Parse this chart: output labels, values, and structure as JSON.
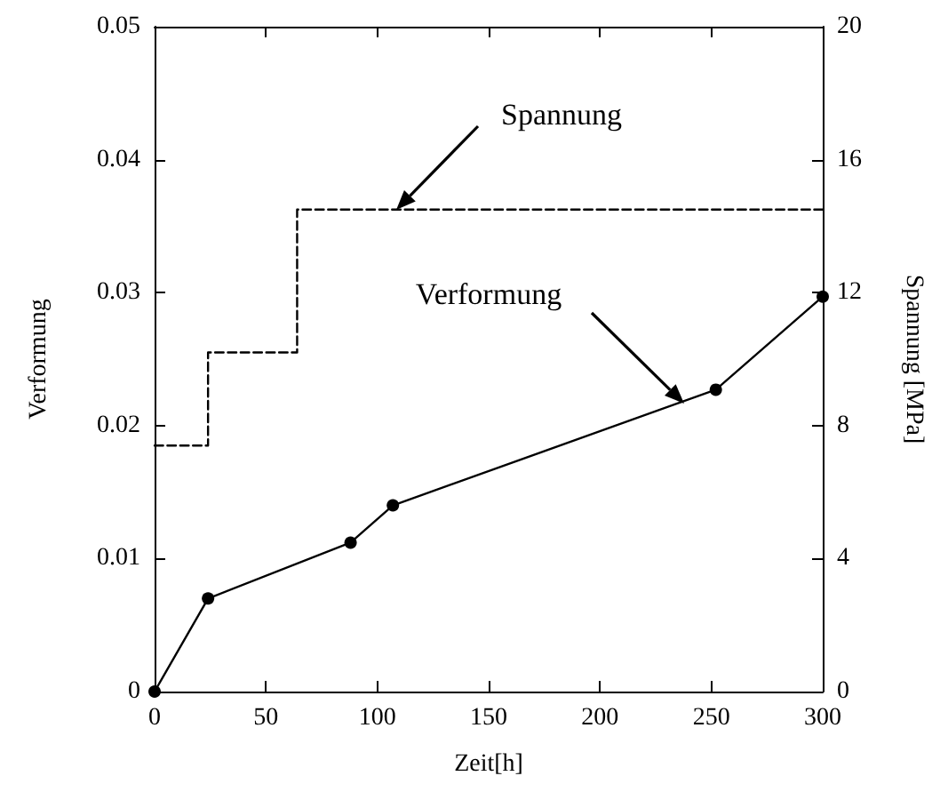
{
  "chart_data": {
    "type": "line",
    "xlabel": "Zeit[h]",
    "ylabel": "Verformung",
    "y2label": "Spannung [MPa]",
    "xlim": [
      0,
      300
    ],
    "xticks": [
      0,
      50,
      100,
      150,
      200,
      250,
      300
    ],
    "ylim": [
      0,
      0.05
    ],
    "yticks": [
      0,
      0.01,
      0.02,
      0.03,
      0.04,
      0.05
    ],
    "y2lim": [
      0,
      20
    ],
    "y2ticks": [
      0,
      4,
      8,
      12,
      16,
      20
    ],
    "grid": false,
    "series": [
      {
        "color": "#000000",
        "marker": "circle",
        "line_style": "solid",
        "x": [
          0,
          24,
          88,
          107,
          252,
          300
        ],
        "values": [
          0,
          0.007,
          0.0112,
          0.014,
          0.0227,
          0.0297
        ]
      },
      {
        "type": "step",
        "axis": "y2",
        "color": "#000000",
        "marker": "none",
        "line_style": "dashed",
        "x": [
          0,
          24,
          64,
          300
        ],
        "values": [
          7.4,
          10.2,
          14.5,
          14.5
        ]
      }
    ],
    "annotations": [
      "Spannung",
      "Verformung"
    ]
  }
}
